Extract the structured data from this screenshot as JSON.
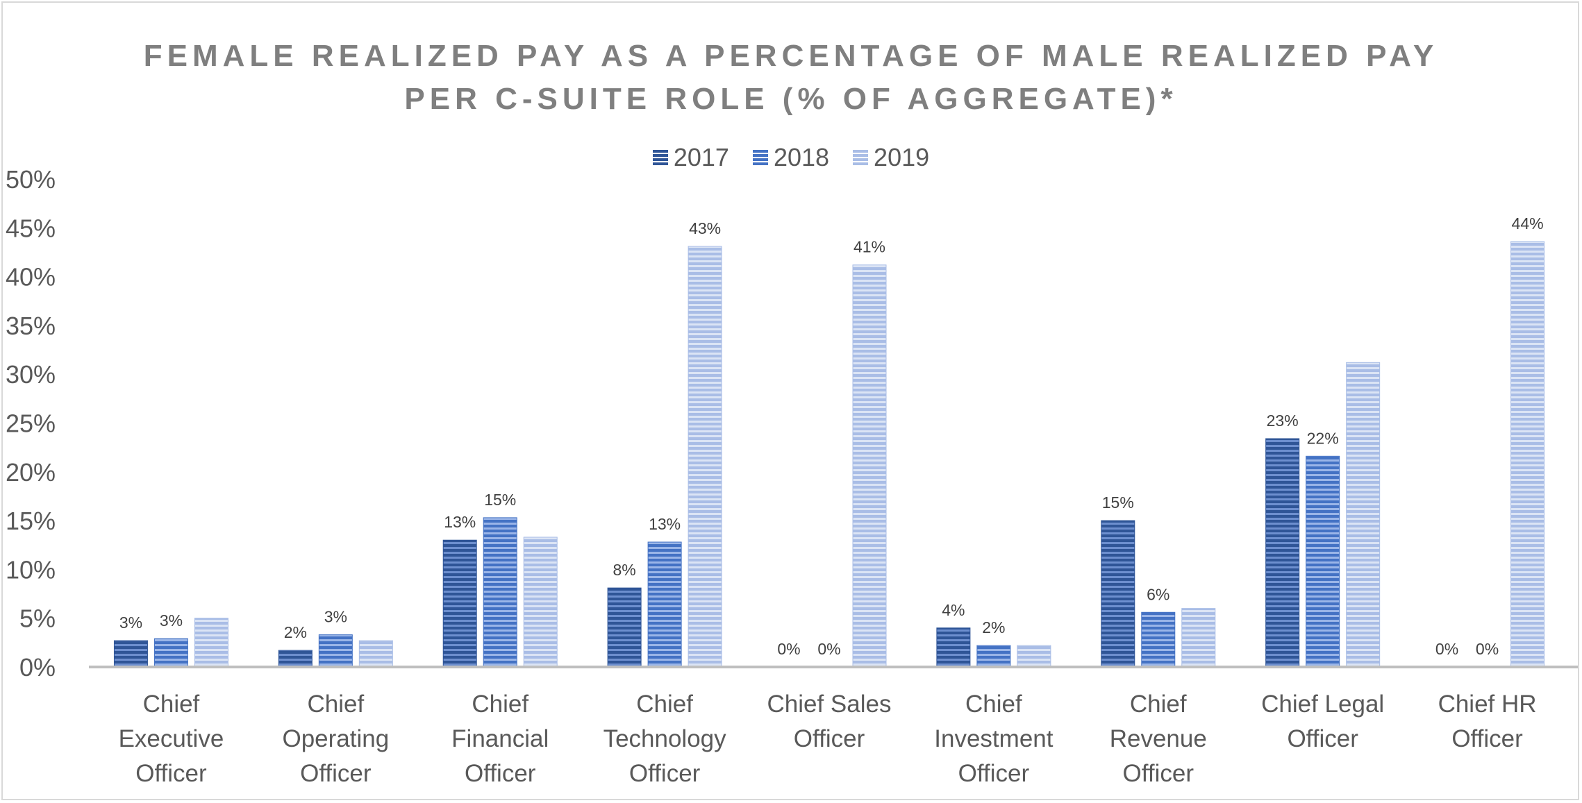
{
  "chart_data": {
    "type": "bar",
    "title_lines": [
      "FEMALE REALIZED PAY AS A PERCENTAGE OF MALE REALIZED PAY",
      "PER C-SUITE ROLE (% OF AGGREGATE)*"
    ],
    "categories": [
      [
        "Chief",
        "Executive",
        "Officer"
      ],
      [
        "Chief",
        "Operating",
        "Officer"
      ],
      [
        "Chief",
        "Financial",
        "Officer"
      ],
      [
        "Chief",
        "Technology",
        "Officer"
      ],
      [
        "Chief Sales",
        "Officer"
      ],
      [
        "Chief",
        "Investment",
        "Officer"
      ],
      [
        "Chief",
        "Revenue",
        "Officer"
      ],
      [
        "Chief Legal",
        "Officer"
      ],
      [
        "Chief HR",
        "Officer"
      ]
    ],
    "series": [
      {
        "name": "2017",
        "color": "#2f5597",
        "values": [
          2.7,
          1.7,
          13.0,
          8.1,
          0,
          4.0,
          15.0,
          23.4,
          0
        ],
        "labels": [
          "3%",
          "2%",
          "13%",
          "8%",
          "0%",
          "4%",
          "15%",
          "23%",
          "0%"
        ]
      },
      {
        "name": "2018",
        "color": "#4472c4",
        "values": [
          2.9,
          3.3,
          15.3,
          12.8,
          0,
          2.2,
          5.6,
          21.6,
          0
        ],
        "labels": [
          "3%",
          "3%",
          "15%",
          "13%",
          "0%",
          "2%",
          "6%",
          "22%",
          "0%"
        ]
      },
      {
        "name": "2019",
        "color": "#a9bde6",
        "values": [
          5.0,
          2.7,
          13.3,
          43.1,
          41.2,
          2.2,
          6.0,
          31.2,
          43.6
        ],
        "labels": [
          "",
          "",
          "",
          "43%",
          "41%",
          "",
          "",
          "",
          "44%"
        ]
      }
    ],
    "ylim": [
      0,
      50
    ],
    "yticks": [
      "0%",
      "5%",
      "10%",
      "15%",
      "20%",
      "25%",
      "30%",
      "35%",
      "40%",
      "45%",
      "50%"
    ],
    "gridlines": false,
    "legend_position": "top"
  }
}
